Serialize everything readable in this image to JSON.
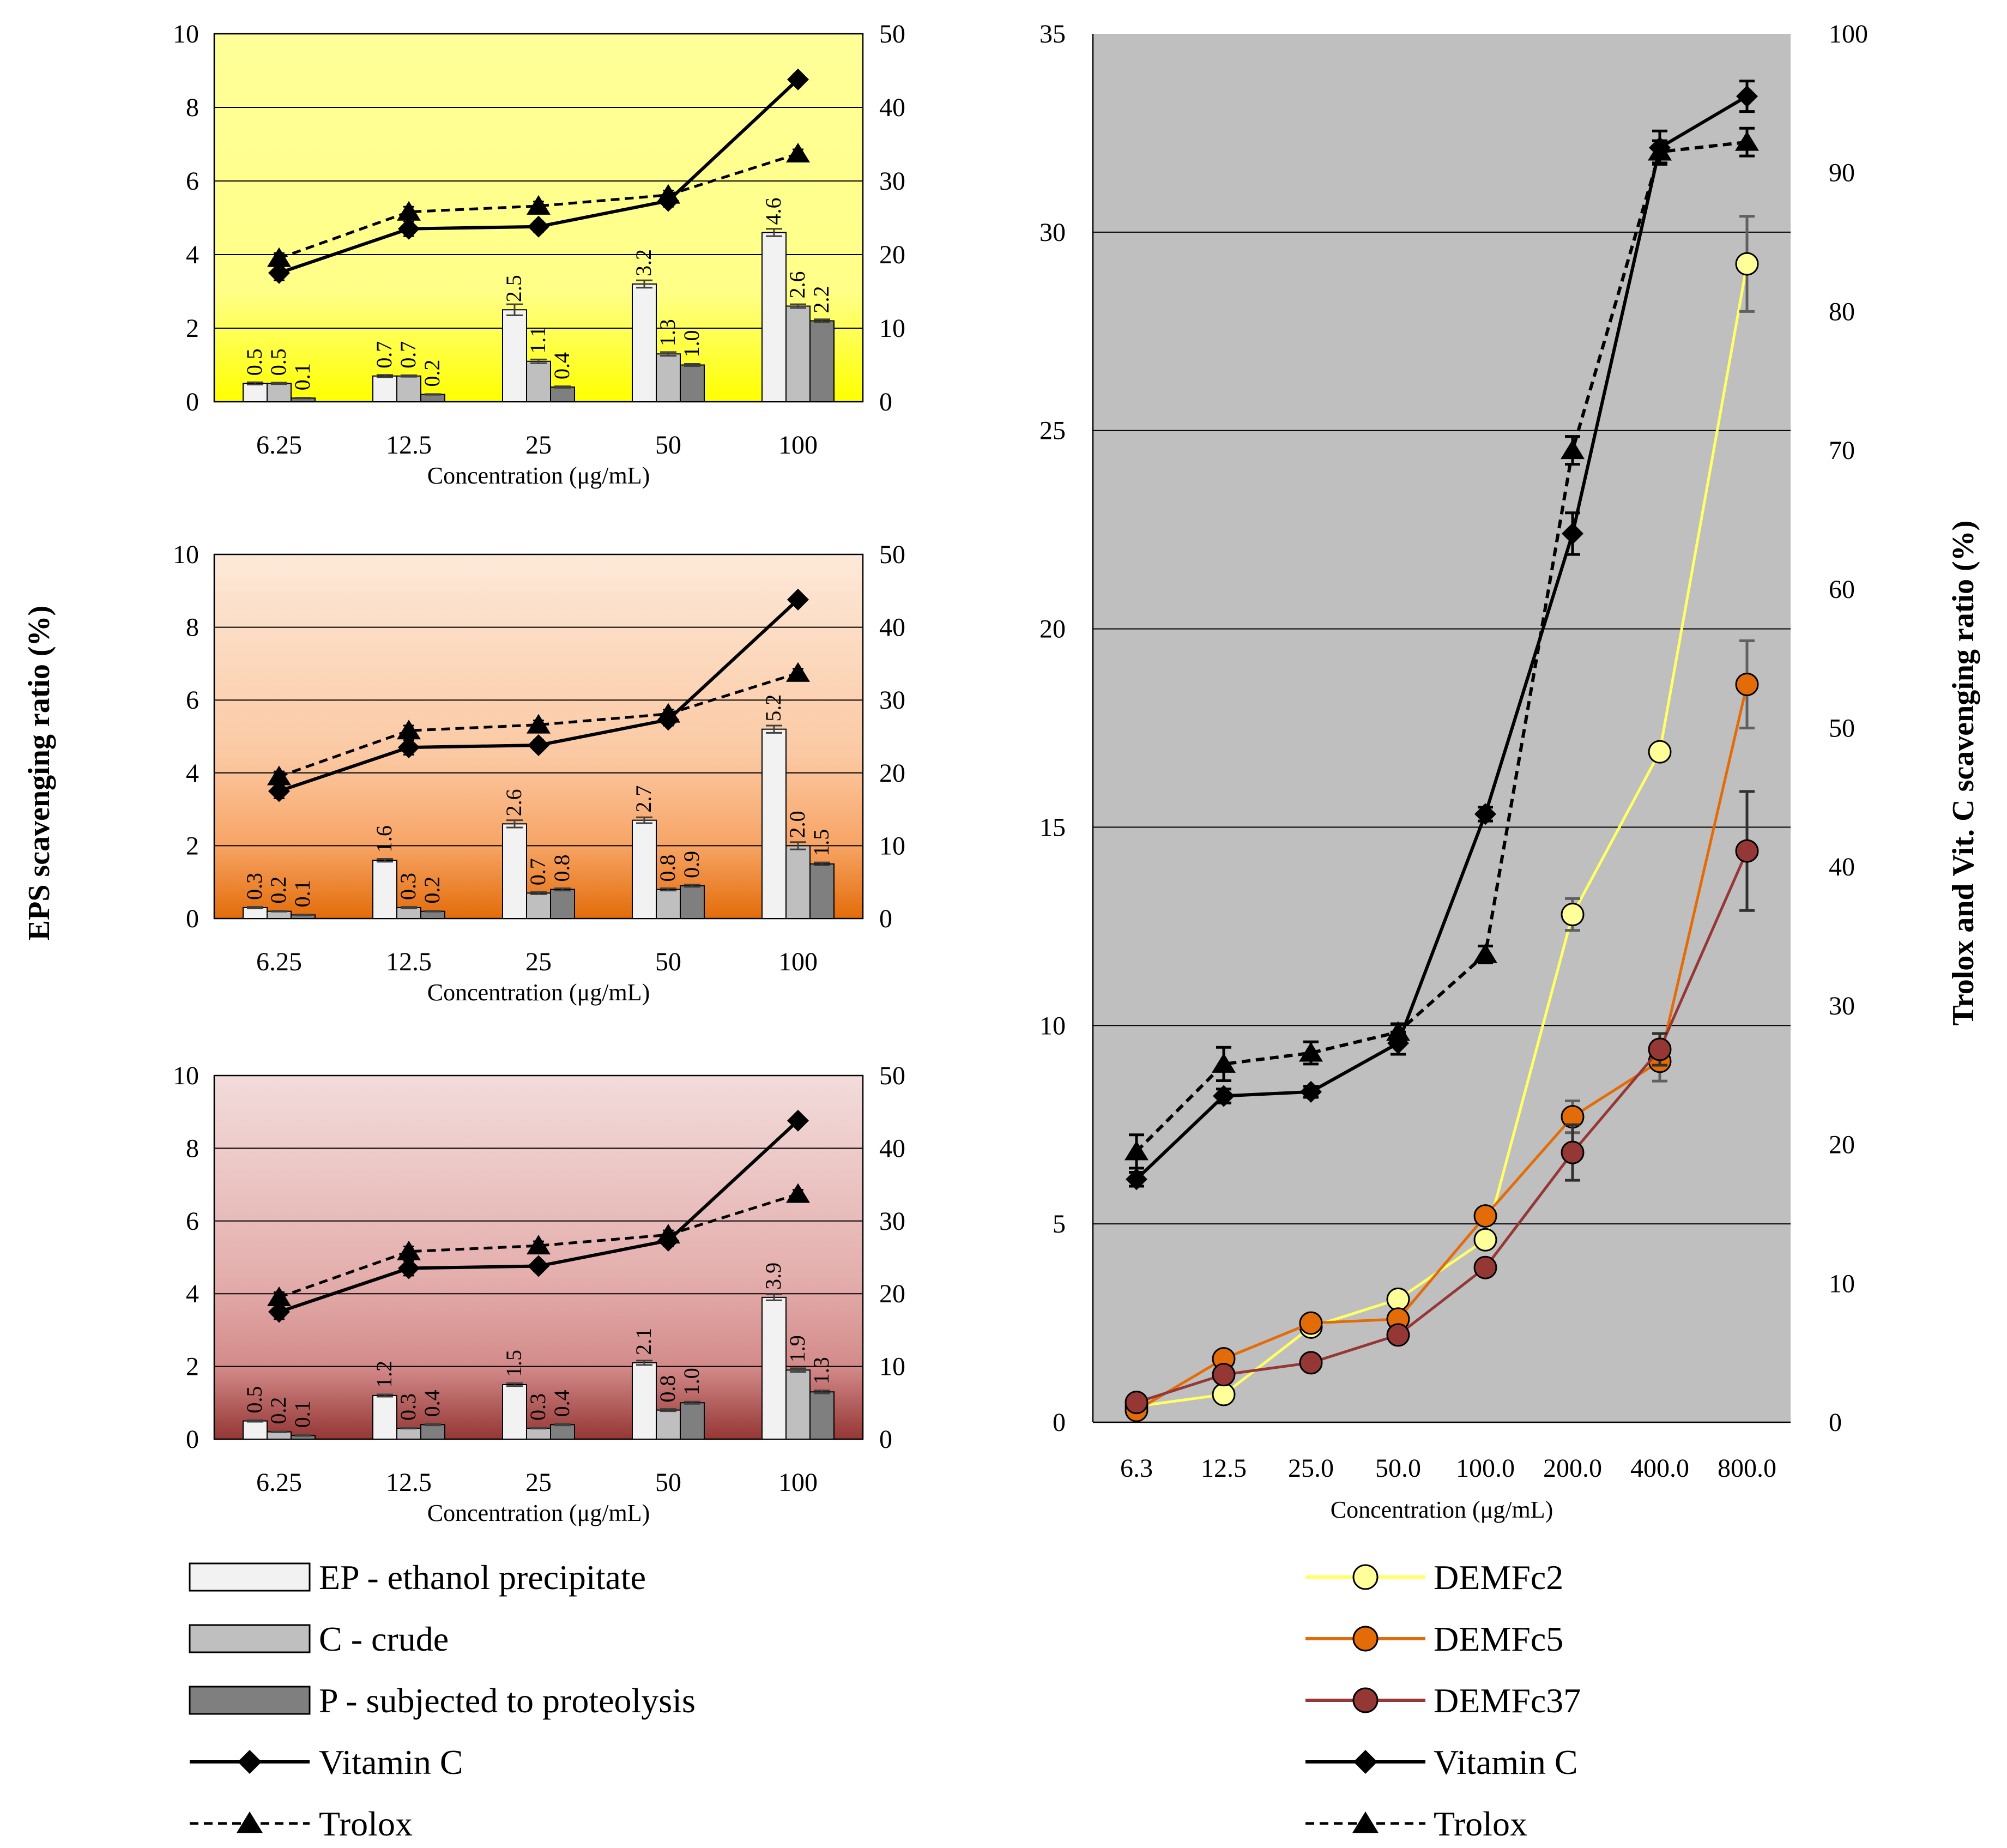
{
  "y_axis_left_label": "EPS scavenging ratio (%)",
  "y_axis_right_label": "Trolox and Vit. C scavenging ratio (%)",
  "colors": {
    "EP": "#f2f2f2",
    "C": "#bfbfbf",
    "P": "#7f7f7f",
    "DEMFc2": "#ffff99",
    "DEMFc2_line": "#ffff66",
    "DEMFc5": "#e36c09",
    "DEMFc5_line": "#e36c09",
    "DEMFc37": "#953735",
    "DEMFc37_line": "#953735",
    "plot_right_bg": "#bfbfbf"
  },
  "legend_left": [
    {
      "key": "EP",
      "label": "EP - ethanol precipitate",
      "kind": "bar"
    },
    {
      "key": "C",
      "label": "C - crude",
      "kind": "bar"
    },
    {
      "key": "P",
      "label": "P -  subjected to proteolysis",
      "kind": "bar"
    },
    {
      "key": "VitC",
      "label": "Vitamin C",
      "kind": "line-diamond"
    },
    {
      "key": "Trolox",
      "label": "Trolox",
      "kind": "line-triangle"
    }
  ],
  "legend_right": [
    {
      "key": "DEMFc2",
      "label": "DEMFc2",
      "kind": "line-circle"
    },
    {
      "key": "DEMFc5",
      "label": "DEMFc5",
      "kind": "line-circle"
    },
    {
      "key": "DEMFc37",
      "label": "DEMFc37",
      "kind": "line-circle"
    },
    {
      "key": "VitC",
      "label": "Vitamin C",
      "kind": "line-diamond"
    },
    {
      "key": "Trolox",
      "label": "Trolox",
      "kind": "line-triangle"
    }
  ],
  "chart_data": [
    {
      "type": "bar",
      "panel": "top-left",
      "background": "gradient-yellow",
      "categories": [
        "6.25",
        "12.5",
        "25",
        "50",
        "100"
      ],
      "xlabel": "Concentration (μg/mL)",
      "ylabel": "EPS scavenging ratio (%)",
      "ylim": [
        0,
        10
      ],
      "yticks": [
        "0",
        "2",
        "4",
        "6",
        "8",
        "10"
      ],
      "y2lim": [
        0,
        50
      ],
      "y2ticks": [
        "0",
        "10",
        "20",
        "30",
        "40",
        "50"
      ],
      "series": [
        {
          "name": "EP - ethanol precipitate",
          "values": [
            0.5,
            0.7,
            2.5,
            3.2,
            4.6
          ],
          "labels": [
            "0.5",
            "0.7",
            "2.5",
            "3.2",
            "4.6"
          ],
          "errors": [
            0.03,
            0.03,
            0.15,
            0.1,
            0.1
          ]
        },
        {
          "name": "C - crude",
          "values": [
            0.5,
            0.7,
            1.1,
            1.3,
            2.6
          ],
          "labels": [
            "0.5",
            "0.7",
            "1.1",
            "1.3",
            "2.6"
          ],
          "errors": [
            0.02,
            0.02,
            0.05,
            0.05,
            0.05
          ]
        },
        {
          "name": "P -  subjected to proteolysis",
          "values": [
            0.1,
            0.2,
            0.4,
            1.0,
            2.2
          ],
          "labels": [
            "0.1",
            "0.2",
            "0.4",
            "1.0",
            "2.2"
          ],
          "errors": [
            0.01,
            0.01,
            0.02,
            0.03,
            0.04
          ]
        }
      ],
      "line_series": [
        {
          "name": "Vitamin C",
          "axis": "right",
          "values": [
            17.5,
            23.5,
            23.8,
            27.3,
            43.8
          ],
          "errors": [
            1.0,
            1.0,
            0.7,
            0.8,
            0.5
          ]
        },
        {
          "name": "Trolox",
          "axis": "right",
          "values": [
            19.5,
            25.8,
            26.6,
            28.1,
            33.7
          ],
          "errors": [
            0.7,
            0.7,
            0.6,
            0.6,
            0.6
          ]
        }
      ]
    },
    {
      "type": "bar",
      "panel": "middle-left",
      "background": "gradient-orange",
      "categories": [
        "6.25",
        "12.5",
        "25",
        "50",
        "100"
      ],
      "xlabel": "Concentration (μg/mL)",
      "ylim": [
        0,
        10
      ],
      "yticks": [
        "0",
        "2",
        "4",
        "6",
        "8",
        "10"
      ],
      "y2lim": [
        0,
        50
      ],
      "y2ticks": [
        "0",
        "10",
        "20",
        "30",
        "40",
        "50"
      ],
      "series": [
        {
          "name": "EP - ethanol precipitate",
          "values": [
            0.3,
            1.6,
            2.6,
            2.7,
            5.2
          ],
          "labels": [
            "0.3",
            "1.6",
            "2.6",
            "2.7",
            "5.2"
          ],
          "errors": [
            0.02,
            0.04,
            0.1,
            0.08,
            0.1
          ]
        },
        {
          "name": "C - crude",
          "values": [
            0.2,
            0.3,
            0.7,
            0.8,
            2.0
          ],
          "labels": [
            "0.2",
            "0.3",
            "0.7",
            "0.8",
            "2.0"
          ],
          "errors": [
            0.01,
            0.02,
            0.03,
            0.03,
            0.1
          ]
        },
        {
          "name": "P -  subjected to proteolysis",
          "values": [
            0.1,
            0.2,
            0.8,
            0.9,
            1.5
          ],
          "labels": [
            "0.1",
            "0.2",
            "0.8",
            "0.9",
            "1.5"
          ],
          "errors": [
            0.01,
            0.01,
            0.03,
            0.03,
            0.04
          ]
        }
      ],
      "line_series": [
        {
          "name": "Vitamin C",
          "axis": "right",
          "values": [
            17.5,
            23.5,
            23.8,
            27.3,
            43.8
          ],
          "errors": [
            1.0,
            1.0,
            0.7,
            0.8,
            0.5
          ]
        },
        {
          "name": "Trolox",
          "axis": "right",
          "values": [
            19.5,
            25.8,
            26.6,
            28.1,
            33.7
          ],
          "errors": [
            0.7,
            0.7,
            0.6,
            0.6,
            0.6
          ]
        }
      ]
    },
    {
      "type": "bar",
      "panel": "bottom-left",
      "background": "gradient-red",
      "categories": [
        "6.25",
        "12.5",
        "25",
        "50",
        "100"
      ],
      "xlabel": "Concentration (μg/mL)",
      "ylim": [
        0,
        10
      ],
      "yticks": [
        "0",
        "2",
        "4",
        "6",
        "8",
        "10"
      ],
      "y2lim": [
        0,
        50
      ],
      "y2ticks": [
        "0",
        "10",
        "20",
        "30",
        "40",
        "50"
      ],
      "series": [
        {
          "name": "EP - ethanol precipitate",
          "values": [
            0.5,
            1.2,
            1.5,
            2.1,
            3.9
          ],
          "labels": [
            "0.5",
            "1.2",
            "1.5",
            "2.1",
            "3.9"
          ],
          "errors": [
            0.02,
            0.03,
            0.04,
            0.06,
            0.08
          ]
        },
        {
          "name": "C - crude",
          "values": [
            0.2,
            0.3,
            0.3,
            0.8,
            1.9
          ],
          "labels": [
            "0.2",
            "0.3",
            "0.3",
            "0.8",
            "1.9"
          ],
          "errors": [
            0.01,
            0.01,
            0.01,
            0.03,
            0.05
          ]
        },
        {
          "name": "P -  subjected to proteolysis",
          "values": [
            0.1,
            0.4,
            0.4,
            1.0,
            1.3
          ],
          "labels": [
            "0.1",
            "0.4",
            "0.4",
            "1.0",
            "1.3"
          ],
          "errors": [
            0.01,
            0.02,
            0.02,
            0.03,
            0.04
          ]
        }
      ],
      "line_series": [
        {
          "name": "Vitamin C",
          "axis": "right",
          "values": [
            17.5,
            23.5,
            23.8,
            27.3,
            43.8
          ],
          "errors": [
            1.0,
            1.0,
            0.7,
            0.8,
            0.5
          ]
        },
        {
          "name": "Trolox",
          "axis": "right",
          "values": [
            19.5,
            25.8,
            26.6,
            28.1,
            33.7
          ],
          "errors": [
            0.7,
            0.7,
            0.6,
            0.6,
            0.6
          ]
        }
      ]
    },
    {
      "type": "line",
      "panel": "right",
      "categories": [
        "6.3",
        "12.5",
        "25.0",
        "50.0",
        "100.0",
        "200.0",
        "400.0",
        "800.0"
      ],
      "xlabel": "Concentration (μg/mL)",
      "ylabel": "",
      "y2label": "Trolox and Vit. C scavenging ratio (%)",
      "ylim": [
        0,
        35
      ],
      "yticks": [
        "0",
        "5",
        "10",
        "15",
        "20",
        "25",
        "30",
        "35"
      ],
      "y2lim": [
        0,
        100
      ],
      "y2ticks": [
        "0",
        "10",
        "20",
        "30",
        "40",
        "50",
        "60",
        "70",
        "80",
        "90",
        "100"
      ],
      "grid": true,
      "series": [
        {
          "name": "DEMFc2",
          "axis": "left",
          "values": [
            0.4,
            0.7,
            2.4,
            3.1,
            4.6,
            12.8,
            16.9,
            29.2
          ],
          "errors": [
            0.05,
            0.05,
            0.1,
            0.1,
            0.1,
            0.4,
            0.1,
            1.2
          ]
        },
        {
          "name": "DEMFc5",
          "axis": "left",
          "values": [
            0.3,
            1.6,
            2.5,
            2.6,
            5.2,
            7.7,
            9.1,
            18.6
          ],
          "errors": [
            0.05,
            0.1,
            0.1,
            0.1,
            0.1,
            0.4,
            0.5,
            1.1
          ]
        },
        {
          "name": "DEMFc37",
          "axis": "left",
          "values": [
            0.5,
            1.2,
            1.5,
            2.2,
            3.9,
            6.8,
            9.4,
            14.4
          ],
          "errors": [
            0.05,
            0.1,
            0.1,
            0.1,
            0.1,
            0.7,
            0.4,
            1.5
          ]
        },
        {
          "name": "Vitamin C",
          "axis": "right",
          "values": [
            17.5,
            23.5,
            23.8,
            27.3,
            43.8,
            64.0,
            91.8,
            95.5
          ],
          "errors": [
            0.5,
            0.5,
            0.4,
            0.8,
            0.5,
            1.5,
            1.2,
            1.1
          ]
        },
        {
          "name": "Trolox",
          "axis": "right",
          "values": [
            19.5,
            25.8,
            26.6,
            28.1,
            33.7,
            70.0,
            91.5,
            92.2
          ],
          "errors": [
            1.2,
            1.2,
            0.8,
            0.6,
            0.6,
            1.0,
            0.8,
            1.0
          ]
        }
      ]
    }
  ]
}
